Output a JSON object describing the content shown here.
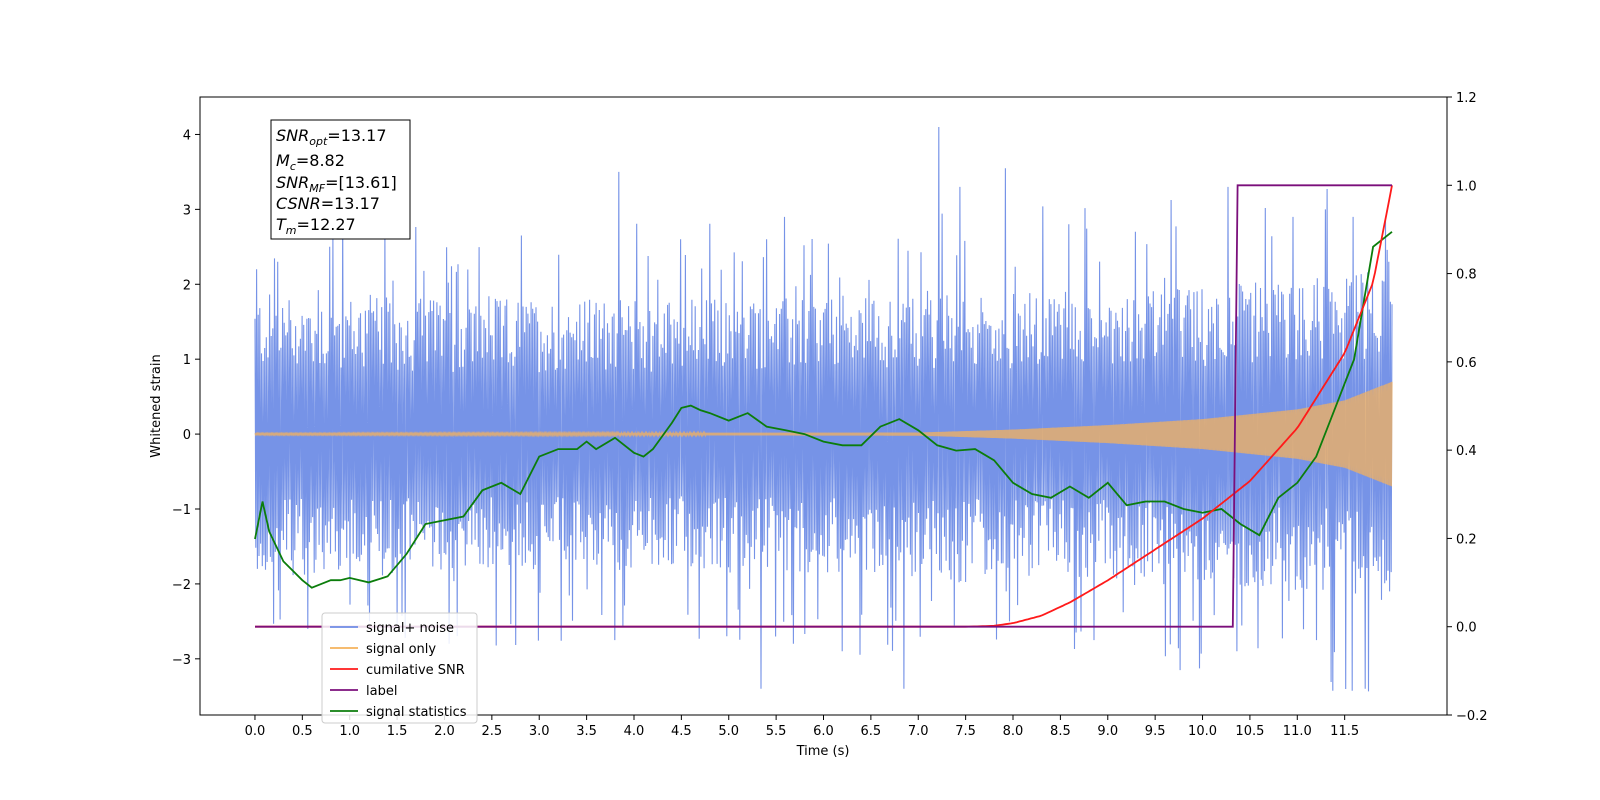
{
  "chart_data": {
    "type": "line",
    "xlabel": "Time (s)",
    "ylabel": "Whitened strain",
    "xlim": [
      -0.58,
      12.58
    ],
    "ylim": [
      -3.75,
      4.5
    ],
    "y2lim": [
      -0.2,
      1.2
    ],
    "x_ticks": [
      0.0,
      0.5,
      1.0,
      1.5,
      2.0,
      2.5,
      3.0,
      3.5,
      4.0,
      4.5,
      5.0,
      5.5,
      6.0,
      6.5,
      7.0,
      7.5,
      8.0,
      8.5,
      9.0,
      9.5,
      10.0,
      10.5,
      11.0,
      11.5
    ],
    "x_tick_labels": [
      "0.0",
      "0.5",
      "1.0",
      "1.5",
      "2.0",
      "2.5",
      "3.0",
      "3.5",
      "4.0",
      "4.5",
      "5.0",
      "5.5",
      "6.0",
      "6.5",
      "7.0",
      "7.5",
      "8.0",
      "8.5",
      "9.0",
      "9.5",
      "10.0",
      "10.5",
      "11.0",
      "11.5"
    ],
    "y_ticks": [
      -3,
      -2,
      -1,
      0,
      1,
      2,
      3,
      4
    ],
    "y_tick_labels": [
      "−3",
      "−2",
      "−1",
      "0",
      "1",
      "2",
      "3",
      "4"
    ],
    "y2_ticks": [
      -0.2,
      0.0,
      0.2,
      0.4,
      0.6,
      0.8,
      1.0,
      1.2
    ],
    "y2_tick_labels": [
      "−0.2",
      "0.0",
      "0.2",
      "0.4",
      "0.6",
      "0.8",
      "1.0",
      "1.2"
    ],
    "colors": {
      "noise": "#6f8de6",
      "signal": "#f5b25c",
      "csnr": "#ff1a1a",
      "label": "#7b0f7b",
      "stats": "#0b7d0b"
    },
    "noise_series": {
      "t_start": 0.0,
      "t_end": 12.0,
      "envelope_center_upper": [
        [
          0,
          1.15
        ],
        [
          2,
          1.1
        ],
        [
          4,
          1.1
        ],
        [
          6,
          1.12
        ],
        [
          8,
          1.15
        ],
        [
          10,
          1.2
        ],
        [
          12,
          1.35
        ]
      ],
      "envelope_center_lower": [
        [
          0,
          -1.15
        ],
        [
          2,
          -1.12
        ],
        [
          4,
          -1.1
        ],
        [
          6,
          -1.12
        ],
        [
          8,
          -1.15
        ],
        [
          10,
          -1.2
        ],
        [
          12,
          -1.35
        ]
      ],
      "peaks": [
        [
          0.02,
          2.2
        ],
        [
          0.25,
          2.3
        ],
        [
          0.8,
          2.5
        ],
        [
          1.38,
          2.7
        ],
        [
          3.85,
          3.5
        ],
        [
          4.5,
          2.6
        ],
        [
          5.4,
          2.6
        ],
        [
          5.6,
          2.9
        ],
        [
          7.22,
          4.1
        ],
        [
          7.45,
          3.3
        ],
        [
          7.92,
          3.55
        ],
        [
          8.6,
          2.8
        ],
        [
          9.3,
          2.7
        ],
        [
          10.28,
          3.3
        ],
        [
          10.95,
          2.9
        ],
        [
          11.3,
          3.0
        ],
        [
          11.6,
          2.9
        ],
        [
          11.97,
          2.3
        ]
      ],
      "troughs": [
        [
          0.02,
          -1.8
        ],
        [
          0.55,
          -2.6
        ],
        [
          1.2,
          -2.5
        ],
        [
          2.05,
          -2.8
        ],
        [
          3.8,
          -2.75
        ],
        [
          4.98,
          -2.7
        ],
        [
          5.33,
          -3.4
        ],
        [
          5.68,
          -2.8
        ],
        [
          6.2,
          -2.9
        ],
        [
          6.85,
          -3.4
        ],
        [
          7.95,
          -2.5
        ],
        [
          8.85,
          -2.75
        ],
        [
          9.75,
          -3.15
        ],
        [
          10.35,
          -2.9
        ],
        [
          11.2,
          -2.75
        ],
        [
          11.72,
          -3.4
        ],
        [
          11.97,
          -2.1
        ]
      ]
    },
    "signal_series": {
      "name": "signal only",
      "amplitude_envelope": [
        [
          0,
          0.01
        ],
        [
          7,
          0.02
        ],
        [
          8,
          0.06
        ],
        [
          9,
          0.12
        ],
        [
          10,
          0.2
        ],
        [
          11,
          0.33
        ],
        [
          11.5,
          0.45
        ],
        [
          12,
          0.7
        ]
      ]
    },
    "csnr_series": {
      "name": "cumilative SNR",
      "axis": "right",
      "x": [
        0,
        7.5,
        7.8,
        8.0,
        8.3,
        8.6,
        9.0,
        9.5,
        10.0,
        10.5,
        11.0,
        11.5,
        11.8,
        12.0
      ],
      "y": [
        0,
        0,
        0.002,
        0.008,
        0.025,
        0.055,
        0.105,
        0.175,
        0.245,
        0.33,
        0.45,
        0.62,
        0.78,
        1.0
      ]
    },
    "label_series": {
      "name": "label",
      "axis": "right",
      "x": [
        0,
        10.32,
        10.37,
        12.0
      ],
      "y": [
        0,
        0,
        1.0,
        1.0
      ]
    },
    "stats_series": {
      "name": "signal statistics",
      "axis": "left",
      "x": [
        0.0,
        0.08,
        0.15,
        0.3,
        0.5,
        0.6,
        0.7,
        0.8,
        0.9,
        1.0,
        1.2,
        1.4,
        1.6,
        1.8,
        2.0,
        2.2,
        2.4,
        2.6,
        2.8,
        3.0,
        3.2,
        3.4,
        3.5,
        3.6,
        3.8,
        4.0,
        4.1,
        4.2,
        4.4,
        4.5,
        4.6,
        4.7,
        4.8,
        5.0,
        5.2,
        5.4,
        5.6,
        5.8,
        6.0,
        6.2,
        6.4,
        6.6,
        6.8,
        7.0,
        7.2,
        7.4,
        7.6,
        7.8,
        8.0,
        8.2,
        8.4,
        8.6,
        8.8,
        9.0,
        9.2,
        9.4,
        9.6,
        9.8,
        10.0,
        10.2,
        10.4,
        10.6,
        10.8,
        11.0,
        11.2,
        11.4,
        11.6,
        11.8,
        12.0
      ],
      "y": [
        -1.4,
        -0.9,
        -1.3,
        -1.7,
        -1.95,
        -2.05,
        -2.0,
        -1.95,
        -1.95,
        -1.92,
        -1.98,
        -1.9,
        -1.6,
        -1.2,
        -1.15,
        -1.1,
        -0.75,
        -0.65,
        -0.8,
        -0.3,
        -0.2,
        -0.2,
        -0.1,
        -0.2,
        -0.05,
        -0.25,
        -0.3,
        -0.2,
        0.15,
        0.35,
        0.38,
        0.32,
        0.28,
        0.18,
        0.28,
        0.1,
        0.05,
        0.0,
        -0.1,
        -0.15,
        -0.15,
        0.1,
        0.2,
        0.05,
        -0.15,
        -0.22,
        -0.2,
        -0.35,
        -0.65,
        -0.8,
        -0.85,
        -0.7,
        -0.85,
        -0.65,
        -0.95,
        -0.9,
        -0.9,
        -1.0,
        -1.05,
        -1.0,
        -1.2,
        -1.35,
        -0.85,
        -0.65,
        -0.3,
        0.35,
        1.0,
        2.5,
        2.7
      ]
    },
    "annotation": {
      "snr_opt": {
        "base": "SNR",
        "sub": "opt",
        "value": "=13.17"
      },
      "mc": {
        "base": "M",
        "sub": "c",
        "value": "=8.82"
      },
      "snr_mf": {
        "base": "SNR",
        "sub": "MF",
        "value": "=[13.61]"
      },
      "csnr": {
        "base": "CSNR",
        "value": "=13.17"
      },
      "tm": {
        "base": "T",
        "sub": "m",
        "value": "=12.27"
      }
    },
    "legend": {
      "placement": "lower-left",
      "entries": [
        {
          "label": "signal+ noise",
          "color": "#6f8de6"
        },
        {
          "label": "signal only",
          "color": "#f5b25c"
        },
        {
          "label": "cumilative SNR",
          "color": "#ff1a1a"
        },
        {
          "label": "label",
          "color": "#7b0f7b"
        },
        {
          "label": "signal statistics",
          "color": "#0b7d0b"
        }
      ]
    },
    "grid": false
  }
}
